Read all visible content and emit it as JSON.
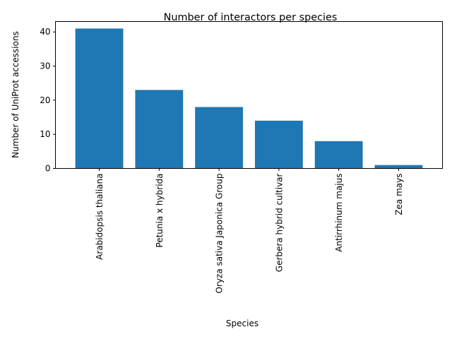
{
  "chart_data": {
    "type": "bar",
    "title": "Number of interactors per species",
    "xlabel": "Species",
    "ylabel": "Number of UniProt accessions",
    "categories": [
      "Arabidopsis thaliana",
      "Petunia x hybrida",
      "Oryza sativa Japonica Group",
      "Gerbera hybrid cultivar",
      "Antirrhinum majus",
      "Zea mays"
    ],
    "values": [
      41,
      23,
      18,
      14,
      8,
      1
    ],
    "ylim": [
      0,
      43.05
    ],
    "yticks": [
      0,
      10,
      20,
      30,
      40
    ],
    "grid": false,
    "legend": "none",
    "bar_color": "#1f77b4"
  }
}
